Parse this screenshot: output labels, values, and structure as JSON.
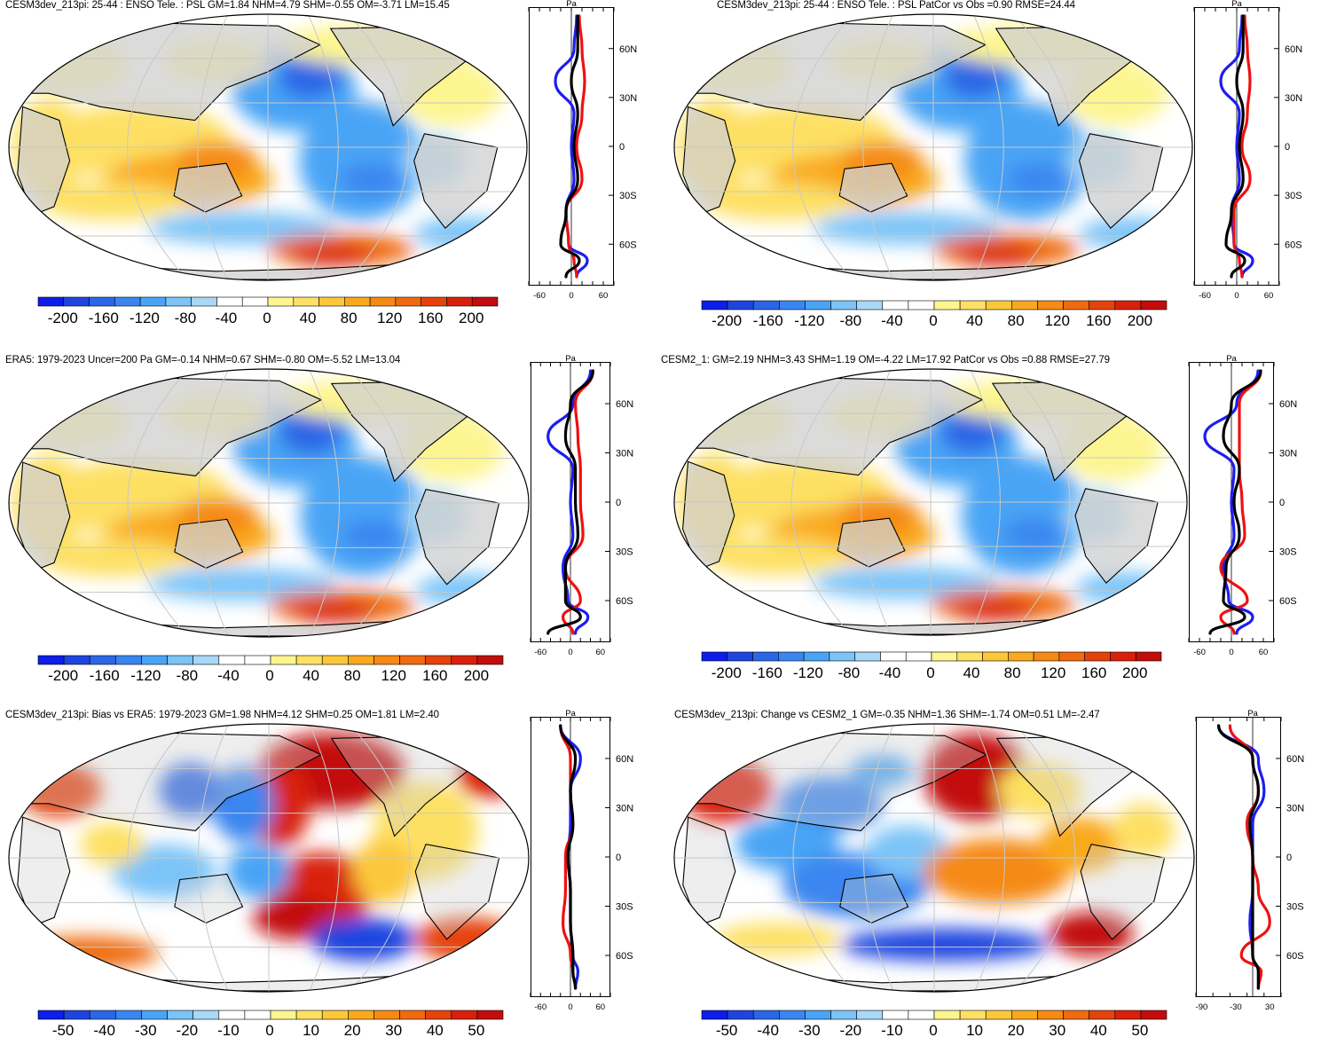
{
  "panels": [
    {
      "id": "p1",
      "title": "CESM3dev_213pi: 25-44 : ENSO Tele. : PSL GM=1.84 NHM=4.79 SHM=-0.55 OM=-3.71 LM=15.45",
      "profile_unit": "Pa",
      "profile_xticks": [
        "-60",
        "0",
        "60"
      ],
      "colorbar_labels": [
        "-200",
        "-160",
        "-120",
        "-80",
        "-40",
        "0",
        "40",
        "80",
        "120",
        "160",
        "200"
      ]
    },
    {
      "id": "p2",
      "title": "CESM3dev_213pi: 25-44 : ENSO Tele. : PSL PatCor vs Obs =0.90 RMSE=24.44",
      "profile_unit": "Pa",
      "profile_xticks": [
        "-60",
        "0",
        "60"
      ],
      "colorbar_labels": [
        "-200",
        "-160",
        "-120",
        "-80",
        "-40",
        "0",
        "40",
        "80",
        "120",
        "160",
        "200"
      ]
    },
    {
      "id": "p3",
      "title": "ERA5: 1979-2023 Uncer=200 Pa GM=-0.14 NHM=0.67 SHM=-0.80 OM=-5.52 LM=13.04",
      "profile_unit": "Pa",
      "profile_xticks": [
        "-60",
        "0",
        "60"
      ],
      "colorbar_labels": [
        "-200",
        "-160",
        "-120",
        "-80",
        "-40",
        "0",
        "40",
        "80",
        "120",
        "160",
        "200"
      ]
    },
    {
      "id": "p4",
      "title": "CESM2_1: GM=2.19 NHM=3.43 SHM=1.19 OM=-4.22 LM=17.92 PatCor vs Obs =0.88 RMSE=27.79",
      "profile_unit": "Pa",
      "profile_xticks": [
        "-60",
        "0",
        "60"
      ],
      "colorbar_labels": [
        "-200",
        "-160",
        "-120",
        "-80",
        "-40",
        "0",
        "40",
        "80",
        "120",
        "160",
        "200"
      ]
    },
    {
      "id": "p5",
      "title": "CESM3dev_213pi: Bias vs ERA5: 1979-2023 GM=1.98 NHM=4.12 SHM=0.25 OM=1.81 LM=2.40",
      "profile_unit": "Pa",
      "profile_xticks": [
        "-60",
        "0",
        "60"
      ],
      "colorbar_labels": [
        "-50",
        "-40",
        "-30",
        "-20",
        "-10",
        "0",
        "10",
        "20",
        "30",
        "40",
        "50"
      ]
    },
    {
      "id": "p6",
      "title": "CESM3dev_213pi: Change vs CESM2_1 GM=-0.35 NHM=1.36 SHM=-1.74 OM=0.51 LM=-2.47",
      "profile_unit": "Pa",
      "profile_xticks": [
        "-90",
        "-30",
        "30"
      ],
      "colorbar_labels": [
        "-50",
        "-40",
        "-30",
        "-20",
        "-10",
        "0",
        "10",
        "20",
        "30",
        "40",
        "50"
      ]
    }
  ],
  "lat_labels": [
    "60N",
    "30N",
    "0",
    "30S",
    "60S"
  ],
  "colors": {
    "ocean_white": "#ffffff",
    "land": "#cfcfcf",
    "grid": "#c8c8c8",
    "zonal_model": "#1d1df0",
    "zonal_obs": "#ee1111",
    "zonal_all": "#000000",
    "cbar": [
      "#0d1ee8",
      "#1e45e0",
      "#2a66e6",
      "#3a86f0",
      "#4aa4f5",
      "#7cc4f8",
      "#a8d8f6",
      "#ffffff",
      "#ffffff",
      "#fdf590",
      "#fde064",
      "#fcc83a",
      "#f9a91d",
      "#f58a14",
      "#ef6a10",
      "#e5430c",
      "#d9200b",
      "#c30c0c"
    ]
  },
  "chart_data": [
    {
      "panel": "p1",
      "type": "heatmap",
      "title": "CESM3dev_213pi: 25-44 : ENSO Tele. : PSL GM=1.84 NHM=4.79 SHM=-0.55 OM=-3.71 LM=15.45",
      "units": "Pa",
      "colorbar_range": [
        -200,
        200
      ],
      "zonal_profile": {
        "lats": [
          80,
          60,
          40,
          20,
          0,
          -20,
          -40,
          -60,
          -70,
          -80
        ],
        "series": [
          {
            "name": "model",
            "color": "blue",
            "values": [
              10,
              5,
              -30,
              5,
              0,
              5,
              -10,
              -5,
              30,
              10
            ]
          },
          {
            "name": "obs",
            "color": "red",
            "values": [
              15,
              20,
              25,
              20,
              10,
              20,
              -10,
              -5,
              5,
              10
            ]
          },
          {
            "name": "mean",
            "color": "black",
            "values": [
              12,
              12,
              0,
              12,
              5,
              12,
              -10,
              -20,
              15,
              -10
            ]
          }
        ],
        "xlim": [
          -80,
          80
        ]
      }
    },
    {
      "panel": "p2",
      "type": "heatmap",
      "title": "CESM3dev_213pi: 25-44 : ENSO Tele. : PSL PatCor vs Obs =0.90 RMSE=24.44",
      "units": "Pa",
      "colorbar_range": [
        -200,
        200
      ],
      "zonal_profile": {
        "lats": [
          80,
          60,
          40,
          20,
          0,
          -20,
          -40,
          -60,
          -70,
          -80
        ],
        "series": [
          {
            "name": "model",
            "color": "blue",
            "values": [
              10,
              5,
              -30,
              5,
              0,
              5,
              -10,
              -5,
              30,
              10
            ]
          },
          {
            "name": "obs",
            "color": "red",
            "values": [
              15,
              20,
              25,
              20,
              10,
              25,
              -5,
              -5,
              5,
              10
            ]
          },
          {
            "name": "mean",
            "color": "black",
            "values": [
              12,
              12,
              0,
              12,
              5,
              12,
              -10,
              -20,
              15,
              -10
            ]
          }
        ],
        "xlim": [
          -80,
          80
        ]
      }
    },
    {
      "panel": "p3",
      "type": "heatmap",
      "title": "ERA5: 1979-2023 Uncer=200 Pa GM=-0.14 NHM=0.67 SHM=-0.80 OM=-5.52 LM=13.04",
      "units": "Pa",
      "colorbar_range": [
        -200,
        200
      ],
      "zonal_profile": {
        "lats": [
          80,
          60,
          40,
          20,
          0,
          -20,
          -40,
          -60,
          -70,
          -80
        ],
        "series": [
          {
            "name": "model",
            "color": "blue",
            "values": [
              40,
              5,
              -45,
              5,
              0,
              5,
              -15,
              -5,
              35,
              10
            ]
          },
          {
            "name": "obs",
            "color": "red",
            "values": [
              45,
              10,
              15,
              20,
              20,
              25,
              -10,
              20,
              -15,
              5
            ]
          },
          {
            "name": "mean",
            "color": "black",
            "values": [
              45,
              0,
              -10,
              10,
              10,
              15,
              -10,
              -10,
              20,
              -45
            ]
          }
        ],
        "xlim": [
          -80,
          80
        ]
      }
    },
    {
      "panel": "p4",
      "type": "heatmap",
      "title": "CESM2_1: GM=2.19 NHM=3.43 SHM=1.19 OM=-4.22 LM=17.92 PatCor vs Obs =0.88 RMSE=27.79",
      "units": "Pa",
      "colorbar_range": [
        -200,
        200
      ],
      "zonal_profile": {
        "lats": [
          80,
          60,
          40,
          20,
          0,
          -20,
          -40,
          -60,
          -70,
          -80
        ],
        "series": [
          {
            "name": "model",
            "color": "blue",
            "values": [
              50,
              10,
              -50,
              5,
              0,
              5,
              -15,
              -5,
              40,
              10
            ]
          },
          {
            "name": "obs",
            "color": "red",
            "values": [
              55,
              15,
              15,
              15,
              20,
              25,
              -20,
              30,
              -20,
              5
            ]
          },
          {
            "name": "mean",
            "color": "black",
            "values": [
              55,
              0,
              -15,
              15,
              5,
              15,
              -10,
              -15,
              25,
              -40
            ]
          }
        ],
        "xlim": [
          -80,
          80
        ]
      }
    },
    {
      "panel": "p5",
      "type": "heatmap",
      "title": "CESM3dev_213pi: Bias vs ERA5: 1979-2023 GM=1.98 NHM=4.12 SHM=0.25 OM=1.81 LM=2.40",
      "units": "Pa",
      "colorbar_range": [
        -50,
        50
      ],
      "zonal_profile": {
        "lats": [
          80,
          60,
          40,
          20,
          0,
          -20,
          -40,
          -60,
          -70,
          -80
        ],
        "series": [
          {
            "name": "model",
            "color": "blue",
            "values": [
              -20,
              20,
              0,
              0,
              -5,
              0,
              0,
              5,
              15,
              10
            ]
          },
          {
            "name": "obs",
            "color": "red",
            "values": [
              -20,
              0,
              0,
              5,
              -10,
              -10,
              -15,
              0,
              5,
              10
            ]
          },
          {
            "name": "mean",
            "color": "black",
            "values": [
              -20,
              10,
              0,
              5,
              -5,
              0,
              0,
              5,
              5,
              10
            ]
          }
        ],
        "xlim": [
          -80,
          80
        ]
      }
    },
    {
      "panel": "p6",
      "type": "heatmap",
      "title": "CESM3dev_213pi: Change vs CESM2_1 GM=-0.35 NHM=1.36 SHM=-1.74 OM=0.51 LM=-2.47",
      "units": "Pa",
      "colorbar_range": [
        -50,
        50
      ],
      "zonal_profile": {
        "lats": [
          80,
          60,
          40,
          20,
          0,
          -20,
          -40,
          -60,
          -70,
          -80
        ],
        "series": [
          {
            "name": "model",
            "color": "blue",
            "values": [
              -60,
              10,
              20,
              0,
              0,
              0,
              -5,
              0,
              10,
              10
            ]
          },
          {
            "name": "obs",
            "color": "red",
            "values": [
              -40,
              0,
              10,
              -10,
              0,
              10,
              30,
              -20,
              15,
              10
            ]
          },
          {
            "name": "mean",
            "color": "black",
            "values": [
              -60,
              0,
              10,
              -5,
              0,
              0,
              0,
              0,
              10,
              10
            ]
          }
        ],
        "xlim": [
          -100,
          50
        ]
      }
    }
  ]
}
